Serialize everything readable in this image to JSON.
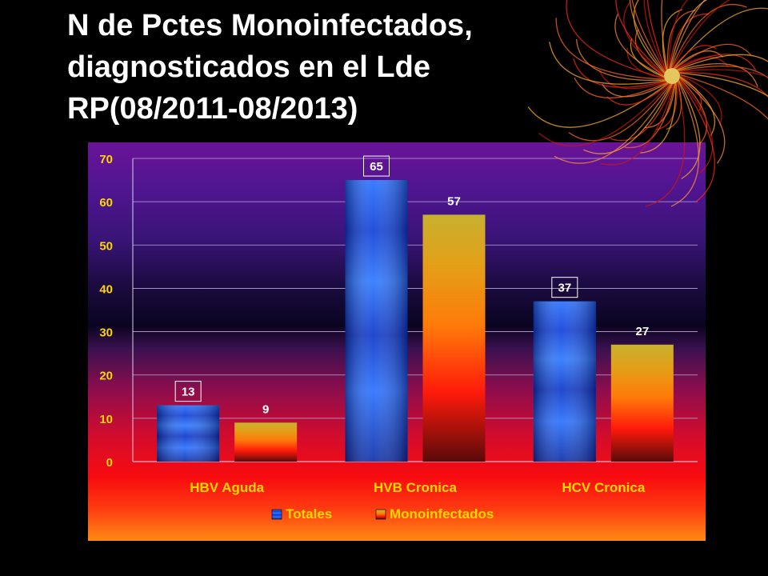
{
  "slide": {
    "title_lines": [
      "N de Pctes Monoinfectados,",
      "diagnosticados en el Lde",
      "RP(08/2011-08/2013)"
    ],
    "decoration_icon": "red-orange-fireworks-swirl"
  },
  "chart_data": {
    "type": "bar",
    "categories": [
      "HBV Aguda",
      "HVB Cronica",
      "HCV Cronica"
    ],
    "series": [
      {
        "name": "Totales",
        "values": [
          13,
          65,
          37
        ],
        "color": "#1a4dff"
      },
      {
        "name": "Monoinfectados",
        "values": [
          9,
          57,
          27
        ],
        "color": "#ff6a00"
      }
    ],
    "ylim": [
      0,
      70
    ],
    "yticks": [
      0,
      10,
      20,
      30,
      40,
      50,
      60,
      70
    ],
    "grid": true,
    "legend": "bottom",
    "label_color": "#ffd700"
  }
}
